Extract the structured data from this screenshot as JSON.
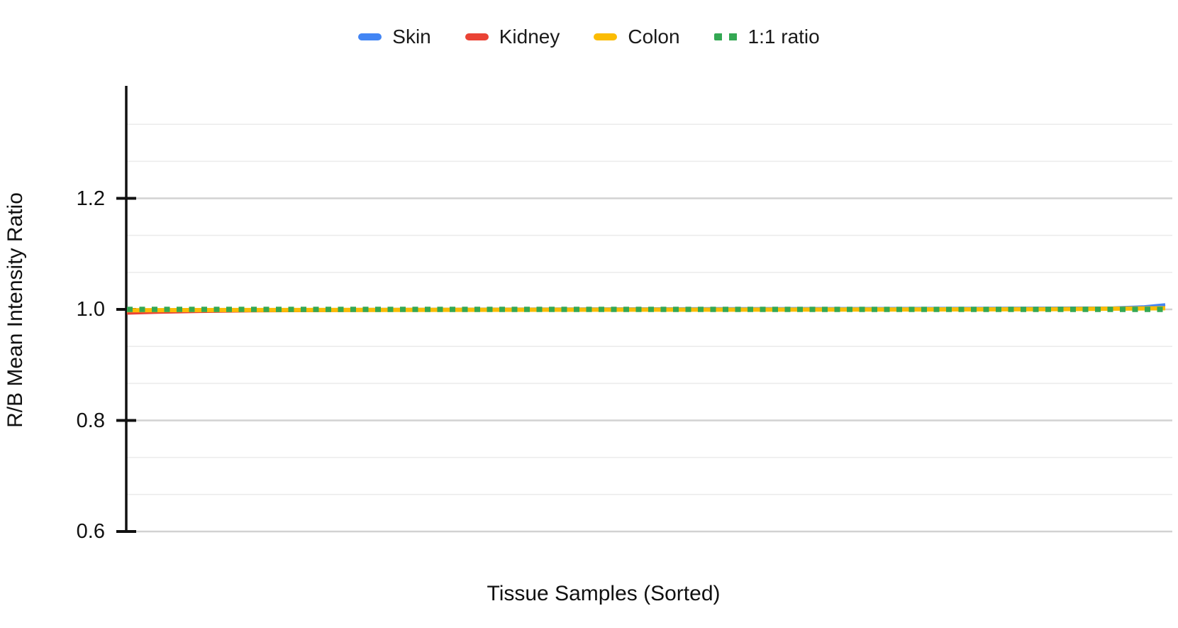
{
  "chart_data": {
    "type": "line",
    "title": "",
    "xlabel": "Tissue Samples (Sorted)",
    "ylabel": "R/B Mean Intensity Ratio",
    "ylim": [
      0.6,
      1.4
    ],
    "grid": "on",
    "minor_gridlines_per_major": 3,
    "x_tick_labels": "none",
    "legend_position": "top-center",
    "y_axis": {
      "ticks": [
        {
          "value": 0.6,
          "label": "0.6"
        },
        {
          "value": 0.8,
          "label": "0.8"
        },
        {
          "value": 1.0,
          "label": "1.0"
        },
        {
          "value": 1.2,
          "label": "1.2"
        }
      ]
    },
    "series": [
      {
        "name": "Skin",
        "color": "#4285F4",
        "style": "solid",
        "points": [
          [
            0,
            0.999
          ],
          [
            0.1,
            0.9995
          ],
          [
            0.2,
            1.0
          ],
          [
            0.3,
            1.0005
          ],
          [
            0.4,
            1.001
          ],
          [
            0.5,
            1.0013
          ],
          [
            0.6,
            1.0016
          ],
          [
            0.7,
            1.0018
          ],
          [
            0.8,
            1.002
          ],
          [
            0.9,
            1.0025
          ],
          [
            0.95,
            1.003
          ],
          [
            0.98,
            1.005
          ],
          [
            1,
            1.0085
          ]
        ]
      },
      {
        "name": "Kidney",
        "color": "#EA4335",
        "style": "solid",
        "points": [
          [
            0,
            0.993
          ],
          [
            0.03,
            0.9945
          ],
          [
            0.07,
            0.996
          ],
          [
            0.12,
            0.997
          ],
          [
            0.2,
            0.9978
          ],
          [
            0.3,
            0.9985
          ],
          [
            0.4,
            0.999
          ],
          [
            0.5,
            0.9993
          ],
          [
            0.6,
            0.9996
          ],
          [
            0.7,
            0.9999
          ],
          [
            0.8,
            1.0002
          ],
          [
            0.9,
            1.001
          ],
          [
            0.97,
            1.003
          ],
          [
            1,
            1.005
          ]
        ]
      },
      {
        "name": "Colon",
        "color": "#FBBC04",
        "style": "solid",
        "points": [
          [
            0,
            0.9985
          ],
          [
            0.1,
            0.9988
          ],
          [
            0.25,
            0.9991
          ],
          [
            0.5,
            0.9995
          ],
          [
            0.75,
            0.9999
          ],
          [
            0.9,
            1.0005
          ],
          [
            1,
            1.002
          ]
        ]
      },
      {
        "name": "1:1 ratio",
        "color": "#34A853",
        "style": "dashed",
        "points": [
          [
            0,
            1.0
          ],
          [
            1,
            1.0
          ]
        ]
      }
    ]
  },
  "colors": {
    "background": "#ffffff",
    "axis": "#111111",
    "grid_major": "#d2d2d2",
    "grid_minor": "#ececec",
    "text": "#111111"
  }
}
